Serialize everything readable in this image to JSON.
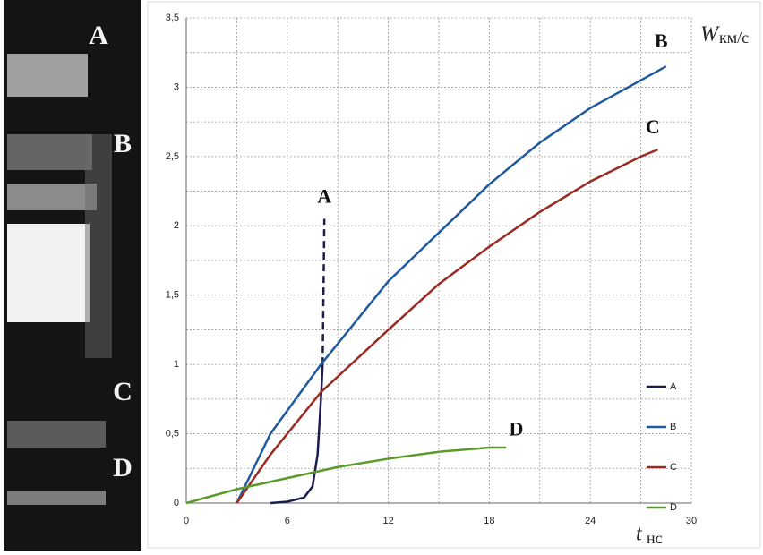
{
  "photo": {
    "labels": [
      "A",
      "B",
      "C",
      "D"
    ]
  },
  "chart_data": {
    "type": "line",
    "xlim": [
      0,
      30
    ],
    "xticks": [
      0,
      6,
      12,
      18,
      24,
      30
    ],
    "xminor": [
      3,
      9,
      15,
      21,
      27
    ],
    "ylim": [
      0,
      3.5
    ],
    "yticks": [
      0,
      {
        "value": 0.5,
        "label": "0,5"
      },
      1,
      {
        "value": 1.5,
        "label": "1,5"
      },
      2,
      {
        "value": 2.5,
        "label": "2,5"
      },
      3,
      {
        "value": 3.5,
        "label": "3,5"
      }
    ],
    "yminor": [
      0.25,
      0.75,
      1.25,
      1.75,
      2.25,
      2.75,
      3.25
    ],
    "grid": true,
    "ylabel": {
      "symbol": "W",
      "unit": "км/с"
    },
    "xlabel": {
      "symbol": "t",
      "unit": "нс"
    },
    "legend": "lower right",
    "series": [
      {
        "name": "A",
        "color": "#1c1c4e",
        "dashed_from": 6,
        "x": [
          5,
          6,
          7,
          7.5,
          7.8,
          8.0,
          8.1,
          8.2
        ],
        "values": [
          0,
          0.01,
          0.04,
          0.12,
          0.35,
          0.75,
          1.0,
          2.05
        ]
      },
      {
        "name": "B",
        "color": "#1f5a9e",
        "x": [
          3,
          5,
          8,
          12,
          15,
          18,
          21,
          24,
          27,
          28.5
        ],
        "values": [
          0,
          0.5,
          1.0,
          1.6,
          1.95,
          2.3,
          2.6,
          2.85,
          3.05,
          3.15
        ]
      },
      {
        "name": "C",
        "color": "#9b2a22",
        "x": [
          3,
          5,
          8,
          12,
          15,
          18,
          21,
          24,
          27,
          28
        ],
        "values": [
          0,
          0.35,
          0.8,
          1.25,
          1.58,
          1.85,
          2.1,
          2.32,
          2.5,
          2.55
        ]
      },
      {
        "name": "D",
        "color": "#5a9a2a",
        "x": [
          0,
          3,
          6,
          9,
          12,
          15,
          18,
          19
        ],
        "values": [
          0,
          0.1,
          0.18,
          0.26,
          0.32,
          0.37,
          0.4,
          0.4
        ]
      }
    ],
    "annotations": [
      {
        "text": "A",
        "x": 8.2,
        "y": 2.2
      },
      {
        "text": "B",
        "x": 28.2,
        "y": 3.32
      },
      {
        "text": "C",
        "x": 27.7,
        "y": 2.7
      },
      {
        "text": "D",
        "x": 19.6,
        "y": 0.52
      }
    ]
  }
}
